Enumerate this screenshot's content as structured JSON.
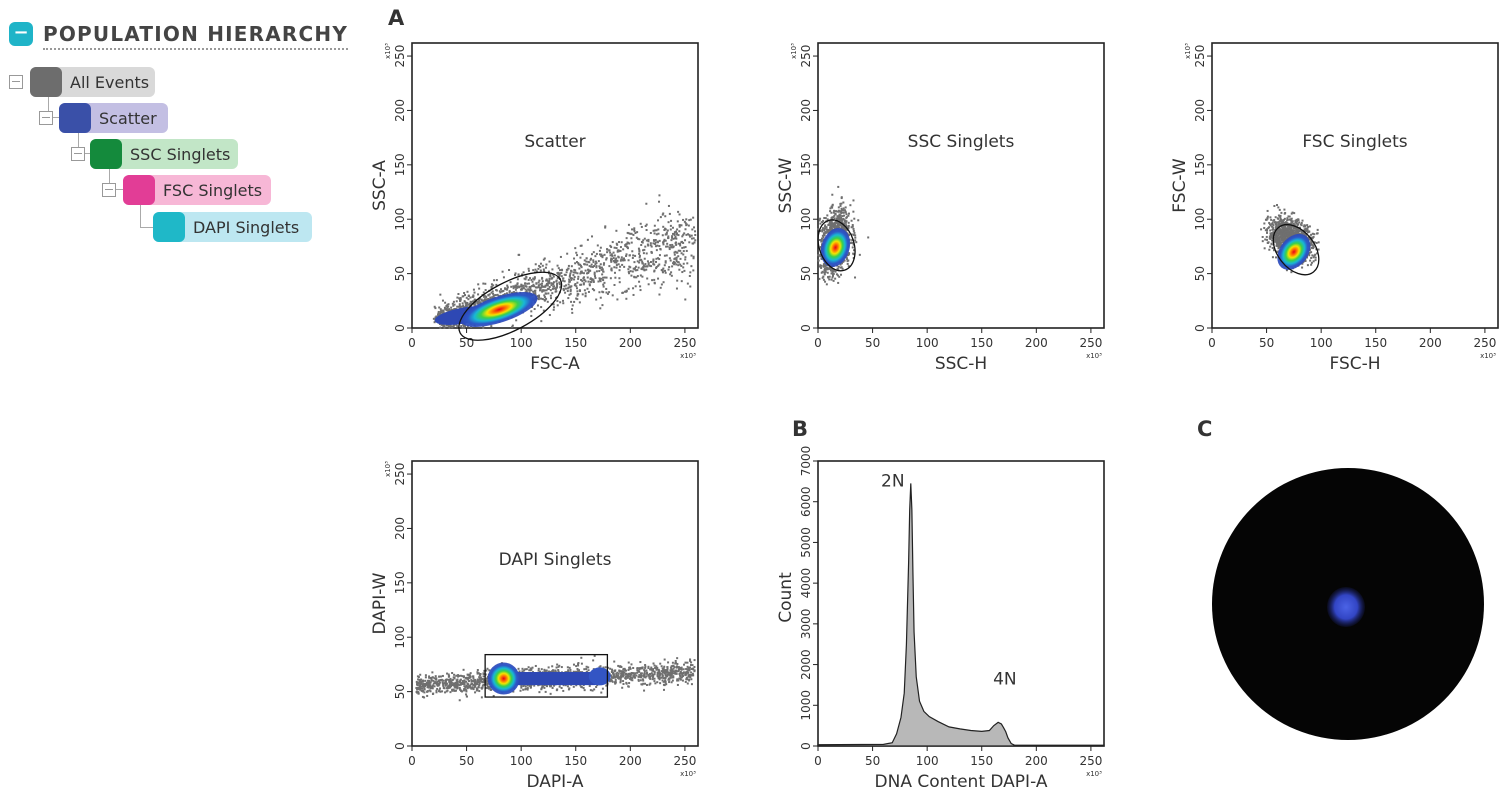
{
  "hierarchy": {
    "title": "POPULATION HIERARCHY",
    "toggle": "−",
    "nodes": [
      {
        "label": "All Events",
        "color": "#6d6d6d",
        "bg": "#d9d9d9"
      },
      {
        "label": "Scatter",
        "color": "#3a50a8",
        "bg": "#c3bfe3"
      },
      {
        "label": "SSC Singlets",
        "color": "#148a3c",
        "bg": "#c2e6c7"
      },
      {
        "label": "FSC Singlets",
        "color": "#e23d96",
        "bg": "#f7b7d6"
      },
      {
        "label": "DAPI Singlets",
        "color": "#1fb8c8",
        "bg": "#bde7f1"
      }
    ]
  },
  "panels": {
    "a": "A",
    "b": "B",
    "c": "C"
  },
  "chart_data": [
    {
      "type": "scatter",
      "title": "Scatter",
      "xlabel": "FSC-A",
      "ylabel": "SSC-A",
      "xlim": [
        0,
        262
      ],
      "ylim": [
        0,
        262
      ],
      "xticks": [
        0,
        50,
        100,
        150,
        200,
        250
      ],
      "yticks": [
        0,
        50,
        100,
        150,
        200,
        250
      ],
      "x_multiplier": "x10³",
      "y_multiplier": "x10³",
      "gate": {
        "shape": "ellipse",
        "cx": 90,
        "cy": 20,
        "rx": 52,
        "ry": 22,
        "angle": 28
      },
      "density_center": [
        80,
        17
      ]
    },
    {
      "type": "scatter",
      "title": "SSC Singlets",
      "xlabel": "SSC-H",
      "ylabel": "SSC-W",
      "xlim": [
        0,
        262
      ],
      "ylim": [
        0,
        262
      ],
      "xticks": [
        0,
        50,
        100,
        150,
        200,
        250
      ],
      "yticks": [
        0,
        50,
        100,
        150,
        200,
        250
      ],
      "x_multiplier": "x10³",
      "y_multiplier": "x10³",
      "gate": {
        "shape": "ellipse",
        "cx": 17,
        "cy": 76,
        "rx": 16,
        "ry": 24,
        "angle": 18
      },
      "density_center": [
        16,
        74
      ]
    },
    {
      "type": "scatter",
      "title": "FSC Singlets",
      "xlabel": "FSC-H",
      "ylabel": "FSC-W",
      "xlim": [
        0,
        262
      ],
      "ylim": [
        0,
        262
      ],
      "xticks": [
        0,
        50,
        100,
        150,
        200,
        250
      ],
      "yticks": [
        0,
        50,
        100,
        150,
        200,
        250
      ],
      "x_multiplier": "x10³",
      "y_multiplier": "x10³",
      "gate": {
        "shape": "ellipse",
        "cx": 77,
        "cy": 72,
        "rx": 17,
        "ry": 26,
        "angle": 38
      },
      "density_center": [
        75,
        70
      ]
    },
    {
      "type": "scatter",
      "title": "DAPI Singlets",
      "xlabel": "DAPI-A",
      "ylabel": "DAPI-W",
      "xlim": [
        0,
        262
      ],
      "ylim": [
        0,
        262
      ],
      "xticks": [
        0,
        50,
        100,
        150,
        200,
        250
      ],
      "yticks": [
        0,
        50,
        100,
        150,
        200,
        250
      ],
      "x_multiplier": "x10³",
      "y_multiplier": "x10³",
      "gate": {
        "shape": "rectangle",
        "x0": 67,
        "x1": 179,
        "y0": 45,
        "y1": 84
      },
      "density_center": [
        84,
        62
      ]
    },
    {
      "type": "area",
      "xlabel": "DNA Content DAPI-A",
      "ylabel": "Count",
      "xlim": [
        0,
        262
      ],
      "ylim": [
        0,
        7000
      ],
      "xticks": [
        0,
        50,
        100,
        150,
        200,
        250
      ],
      "yticks": [
        0,
        1000,
        2000,
        3000,
        4000,
        5000,
        6000,
        7000
      ],
      "x_multiplier": "x10³",
      "annotations": [
        "2N",
        "4N"
      ],
      "x": [
        0,
        60,
        68,
        72,
        76,
        79,
        81,
        83,
        84,
        85,
        86,
        87,
        88,
        90,
        93,
        97,
        102,
        110,
        120,
        130,
        140,
        150,
        157,
        161,
        165,
        168,
        170,
        172,
        174,
        177,
        180,
        200,
        262
      ],
      "y": [
        30,
        40,
        80,
        300,
        700,
        1300,
        2500,
        4500,
        5800,
        6450,
        5800,
        4200,
        2800,
        1700,
        1100,
        850,
        720,
        600,
        470,
        420,
        380,
        360,
        380,
        500,
        580,
        540,
        450,
        350,
        200,
        60,
        20,
        20,
        20
      ]
    }
  ]
}
